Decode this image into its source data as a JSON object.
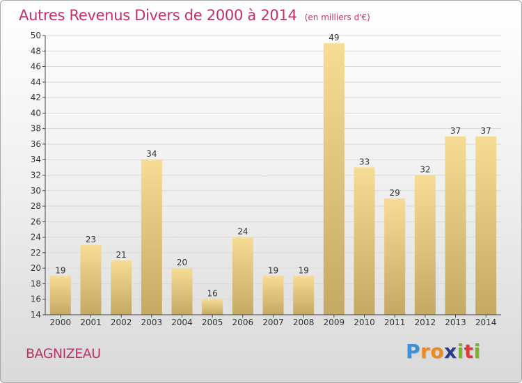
{
  "header": {
    "title": "Autres Revenus Divers de 2000 à 2014",
    "subtitle": "(en milliers d'€)"
  },
  "footer": {
    "commune": "BAGNIZEAU",
    "brand": {
      "letters": [
        "P",
        "r",
        "o",
        "x",
        "i",
        "t",
        "i"
      ],
      "colors": [
        "#3a8fd8",
        "#f08a1c",
        "#f08a1c",
        "#2e3a8c",
        "#7ab51d",
        "#e23a3a",
        "#7ab51d"
      ]
    }
  },
  "colors": {
    "accent": "#c0306a",
    "bar_light": "#f6dc94",
    "bar_dark": "#c4a964",
    "grid": "#d9d9d9",
    "axis": "#444444",
    "text": "#333333"
  },
  "chart_data": {
    "type": "bar",
    "title": "Autres Revenus Divers de 2000 à 2014",
    "subtitle": "(en milliers d'€)",
    "categories": [
      "2000",
      "2001",
      "2002",
      "2003",
      "2004",
      "2005",
      "2006",
      "2007",
      "2008",
      "2009",
      "2010",
      "2011",
      "2012",
      "2013",
      "2014"
    ],
    "values": [
      19,
      23,
      21,
      34,
      20,
      16,
      24,
      19,
      19,
      49,
      33,
      29,
      32,
      37,
      37
    ],
    "data_labels": [
      "19",
      "23",
      "21",
      "34",
      "20",
      "16",
      "24",
      "19",
      "19",
      "49",
      "33",
      "29",
      "32",
      "37",
      "37"
    ],
    "ylim": [
      14,
      50
    ],
    "yticks": [
      14,
      16,
      18,
      20,
      22,
      24,
      26,
      28,
      30,
      32,
      34,
      36,
      38,
      40,
      42,
      44,
      46,
      48,
      50
    ],
    "grid": true,
    "legend": "none"
  }
}
